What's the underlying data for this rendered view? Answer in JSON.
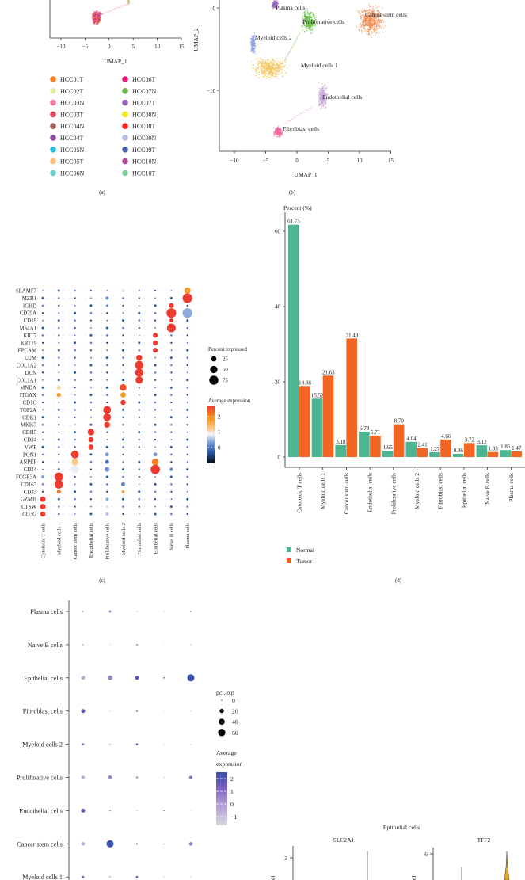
{
  "panel_a": {
    "caption": "(a)",
    "xlabel": "UMAP_1",
    "xticks": [
      "−10",
      "−5",
      "0",
      "5",
      "10",
      "15"
    ],
    "legend": [
      {
        "label": "HCC01T",
        "color": "#f58220"
      },
      {
        "label": "HCC02T",
        "color": "#e6eba2"
      },
      {
        "label": "HCC03N",
        "color": "#f07aa8"
      },
      {
        "label": "HCC03T",
        "color": "#d9485a"
      },
      {
        "label": "HCC04N",
        "color": "#9a5f5c"
      },
      {
        "label": "HCC04T",
        "color": "#8e4ba0"
      },
      {
        "label": "HCC05N",
        "color": "#27c0e0"
      },
      {
        "label": "HCC05T",
        "color": "#fdc27a"
      },
      {
        "label": "HCC06N",
        "color": "#6ccfd6"
      },
      {
        "label": "HCC06T",
        "color": "#e8197a"
      },
      {
        "label": "HCC07N",
        "color": "#6ab64a"
      },
      {
        "label": "HCC07T",
        "color": "#9462b0"
      },
      {
        "label": "HCC08N",
        "color": "#f2e51a"
      },
      {
        "label": "HCC08T",
        "color": "#ee2024"
      },
      {
        "label": "HCC09N",
        "color": "#b3bde3"
      },
      {
        "label": "HCC09T",
        "color": "#4a5fae"
      },
      {
        "label": "HCC10N",
        "color": "#b0499b"
      },
      {
        "label": "HCC10T",
        "color": "#7fcc96"
      }
    ]
  },
  "panel_b": {
    "caption": "(b)",
    "xlabel": "UMAP_1",
    "ylabel": "UMAP_2",
    "xticks": [
      "−10",
      "−5",
      "0",
      "5",
      "10",
      "15"
    ],
    "yticks": [
      "0",
      "−10"
    ],
    "clusters": [
      {
        "label": "Plasma cells",
        "color": "#9a6bb8",
        "u": -3.5,
        "v": 0.4,
        "su": 0.6,
        "sv": 0.6
      },
      {
        "label": "Proliferative cells",
        "color": "#6cc04a",
        "u": 1.9,
        "v": -1.6,
        "su": 1.4,
        "sv": 1.6
      },
      {
        "label": "Cancer stem cells",
        "color": "#f58a4e",
        "u": 11.8,
        "v": -1.5,
        "su": 2.6,
        "sv": 2.2
      },
      {
        "label": "Myeloid cells 2",
        "color": "#8fa8df",
        "u": -7,
        "v": -4.3,
        "su": 0.5,
        "sv": 1.5
      },
      {
        "label": "Myeloid cells 1",
        "color": "#f3c45a",
        "u": -4.3,
        "v": -7.3,
        "su": 3.2,
        "sv": 1.6
      },
      {
        "label": "Endothelial cells",
        "color": "#c8a7d8",
        "u": 4.1,
        "v": -10.8,
        "su": 0.9,
        "sv": 1.8
      },
      {
        "label": "Fibroblast cells",
        "color": "#f06aa0",
        "u": -3,
        "v": -15,
        "su": 0.9,
        "sv": 0.8
      }
    ]
  },
  "panel_c": {
    "caption": "(c)",
    "size_legend_title": "Percent expressed",
    "size_legend": [
      {
        "label": "25",
        "pct": 25
      },
      {
        "label": "50",
        "pct": 50
      },
      {
        "label": "75",
        "pct": 75
      }
    ],
    "color_legend_title": "Average expression",
    "color_ticks": [
      {
        "label": "2",
        "value": 2
      },
      {
        "label": "1",
        "value": 1
      },
      {
        "label": "0",
        "value": 0
      }
    ],
    "genes": [
      "SLAMF7",
      "MZB1",
      "IGHD",
      "CD79A",
      "CD19",
      "MS4A1",
      "KRT7",
      "KRT19",
      "EPCAM",
      "LUM",
      "COL1A2",
      "DCN",
      "COL1A1",
      "MNDA",
      "ITGAX",
      "CD1C",
      "TOP2A",
      "CDK1",
      "MKI67",
      "CDH5",
      "CD34",
      "VWF",
      "PON1",
      "ANPEP",
      "CD24",
      "FCGR3A",
      "CD163",
      "CD33",
      "GZMH",
      "CTSW",
      "CD3G"
    ],
    "cells": [
      "Cytotoxic T cells",
      "Myeloid cells 1",
      "Cancer stem cells",
      "Endothelial cells",
      "Proliferative cells",
      "Myeloid cells 2",
      "Fibroblast cells",
      "Epithelial cells",
      "Naive B cells",
      "Plasma cells"
    ],
    "highlighted": [
      {
        "gene": "SLAMF7",
        "cell": 9,
        "pct": 38,
        "avg": 1.9
      },
      {
        "gene": "SLAMF7",
        "cell": 5,
        "pct": 12,
        "avg": 0.8
      },
      {
        "gene": "MZB1",
        "cell": 9,
        "pct": 85,
        "avg": 2.5
      },
      {
        "gene": "MZB1",
        "cell": 4,
        "pct": 10,
        "avg": 0.2
      },
      {
        "gene": "IGHD",
        "cell": 8,
        "pct": 22,
        "avg": 2.5
      },
      {
        "gene": "CD79A",
        "cell": 8,
        "pct": 85,
        "avg": 2.5
      },
      {
        "gene": "CD79A",
        "cell": 9,
        "pct": 85,
        "avg": 0.4
      },
      {
        "gene": "CD19",
        "cell": 8,
        "pct": 15,
        "avg": 2.5
      },
      {
        "gene": "MS4A1",
        "cell": 8,
        "pct": 70,
        "avg": 2.5
      },
      {
        "gene": "KRT7",
        "cell": 7,
        "pct": 22,
        "avg": 2.5
      },
      {
        "gene": "KRT19",
        "cell": 7,
        "pct": 22,
        "avg": 2.5
      },
      {
        "gene": "EPCAM",
        "cell": 7,
        "pct": 22,
        "avg": 2.5
      },
      {
        "gene": "LUM",
        "cell": 6,
        "pct": 32,
        "avg": 2.5
      },
      {
        "gene": "COL1A2",
        "cell": 6,
        "pct": 65,
        "avg": 2.5
      },
      {
        "gene": "DCN",
        "cell": 6,
        "pct": 62,
        "avg": 2.5
      },
      {
        "gene": "COL1A1",
        "cell": 6,
        "pct": 50,
        "avg": 2.5
      },
      {
        "gene": "MNDA",
        "cell": 5,
        "pct": 40,
        "avg": 2.4
      },
      {
        "gene": "MNDA",
        "cell": 1,
        "pct": 16,
        "avg": 1.2
      },
      {
        "gene": "ITGAX",
        "cell": 5,
        "pct": 25,
        "avg": 2.0
      },
      {
        "gene": "ITGAX",
        "cell": 1,
        "pct": 16,
        "avg": 1.9
      },
      {
        "gene": "CD1C",
        "cell": 5,
        "pct": 25,
        "avg": 2.5
      },
      {
        "gene": "TOP2A",
        "cell": 4,
        "pct": 55,
        "avg": 2.5
      },
      {
        "gene": "CDK1",
        "cell": 4,
        "pct": 55,
        "avg": 2.5
      },
      {
        "gene": "MKI67",
        "cell": 4,
        "pct": 32,
        "avg": 2.5
      },
      {
        "gene": "CDH5",
        "cell": 3,
        "pct": 40,
        "avg": 2.5
      },
      {
        "gene": "CD34",
        "cell": 3,
        "pct": 25,
        "avg": 2.5
      },
      {
        "gene": "VWF",
        "cell": 3,
        "pct": 25,
        "avg": 2.5
      },
      {
        "gene": "PON1",
        "cell": 2,
        "pct": 55,
        "avg": 2.5
      },
      {
        "gene": "PON1",
        "cell": 4,
        "pct": 14,
        "avg": 0.3
      },
      {
        "gene": "PON1",
        "cell": 7,
        "pct": 14,
        "avg": 0.3
      },
      {
        "gene": "ANPEP",
        "cell": 2,
        "pct": 42,
        "avg": 1.3
      },
      {
        "gene": "ANPEP",
        "cell": 7,
        "pct": 42,
        "avg": 2.1
      },
      {
        "gene": "ANPEP",
        "cell": 4,
        "pct": 14,
        "avg": -0.1
      },
      {
        "gene": "CD24",
        "cell": 2,
        "pct": 58,
        "avg": 0.85
      },
      {
        "gene": "CD24",
        "cell": 7,
        "pct": 80,
        "avg": 2.5
      },
      {
        "gene": "CD24",
        "cell": 4,
        "pct": 22,
        "avg": 0.2
      },
      {
        "gene": "CD24",
        "cell": 8,
        "pct": 10,
        "avg": 0.1
      },
      {
        "gene": "FCGR3A",
        "cell": 1,
        "pct": 70,
        "avg": 2.5
      },
      {
        "gene": "FCGR3A",
        "cell": 0,
        "pct": 10,
        "avg": 0.4
      },
      {
        "gene": "CD163",
        "cell": 1,
        "pct": 70,
        "avg": 2.5
      },
      {
        "gene": "CD163",
        "cell": 5,
        "pct": 14,
        "avg": 0.1
      },
      {
        "gene": "CD33",
        "cell": 1,
        "pct": 14,
        "avg": 2.2
      },
      {
        "gene": "CD33",
        "cell": 5,
        "pct": 10,
        "avg": 1.7
      },
      {
        "gene": "GZMH",
        "cell": 0,
        "pct": 28,
        "avg": 2.5
      },
      {
        "gene": "GZMH",
        "cell": 4,
        "pct": 8,
        "avg": 0.4
      },
      {
        "gene": "CTSW",
        "cell": 0,
        "pct": 28,
        "avg": 2.5
      },
      {
        "gene": "CTSW",
        "cell": 4,
        "pct": 8,
        "avg": 0.8
      },
      {
        "gene": "CD3G",
        "cell": 0,
        "pct": 25,
        "avg": 2.5
      },
      {
        "gene": "CD3G",
        "cell": 4,
        "pct": 10,
        "avg": 0.6
      }
    ]
  },
  "chart_data": {
    "type": "bar",
    "title": "",
    "ylabel": "Percent (%)",
    "xlabel": "",
    "ylim": [
      0,
      68
    ],
    "yticks": [
      0,
      20,
      40,
      60
    ],
    "legend_position": "bottom-left",
    "categories": [
      "Cytotoxic T cells",
      "Myeloid cells 1",
      "Cancer stem cells",
      "Endothelial cells",
      "Proliferative cells",
      "Myeloid cells 2",
      "Fibroblast cells",
      "Epithelial cells",
      "Naive B cells",
      "Plasma cells"
    ],
    "series": [
      {
        "name": "Normal",
        "color": "#4db592",
        "values": [
          61.75,
          15.52,
          3.18,
          6.74,
          1.65,
          4.04,
          1.27,
          0.86,
          3.12,
          1.85
        ],
        "labels": [
          "61.75",
          "15.52",
          "3.18",
          "6.74",
          "1.65",
          "4.04",
          "1.27",
          "0.86",
          "3.12",
          "1.85"
        ]
      },
      {
        "name": "Tumor",
        "color": "#f26522",
        "values": [
          18.88,
          21.63,
          31.49,
          5.71,
          8.7,
          2.41,
          4.66,
          3.72,
          1.33,
          1.47
        ],
        "labels": [
          "18.88",
          "21.63",
          "31.49",
          "5.71",
          "8.70",
          "2.41",
          "4.66",
          "3.72",
          "1.33",
          "1.47"
        ]
      }
    ],
    "caption": "(d)"
  },
  "panel_e": {
    "rows": [
      "Plasma cells",
      "Naive B cells",
      "Epithelial cells",
      "Fibroblast cells",
      "Myeloid cells 2",
      "Proliferative cells",
      "Endothelial cells",
      "Cancer stem cells",
      "Myeloid cells 1"
    ],
    "pct": [
      [
        3,
        6,
        1,
        1,
        3
      ],
      [
        2,
        1,
        3,
        0.5,
        1
      ],
      [
        17,
        25,
        17,
        3,
        56
      ],
      [
        17,
        1,
        3,
        0.5,
        1
      ],
      [
        6,
        2,
        5,
        0.5,
        1
      ],
      [
        13,
        17,
        4,
        1,
        13
      ],
      [
        17,
        3,
        1,
        1.5,
        0.5
      ],
      [
        13,
        56,
        3,
        1,
        13
      ],
      [
        6,
        2,
        5,
        1,
        1
      ]
    ],
    "avg": [
      [
        -0.8,
        0.2,
        -0.5,
        -1,
        -0.2
      ],
      [
        -0.2,
        -0.8,
        0.3,
        -1,
        -0.5
      ],
      [
        -0.6,
        0.3,
        1.8,
        0.5,
        2.6
      ],
      [
        1.9,
        -0.5,
        0.3,
        -1,
        -0.3
      ],
      [
        0.3,
        -0.3,
        1,
        -0.6,
        -0.5
      ],
      [
        -0.5,
        0.3,
        0.2,
        -0.5,
        0.6
      ],
      [
        1.9,
        0.1,
        -0.4,
        1,
        -0.8
      ],
      [
        -0.5,
        2.6,
        0.2,
        0.5,
        0.6
      ],
      [
        0.9,
        0.2,
        1.4,
        -0.3,
        -0.3
      ]
    ],
    "size_legend_title": "pct.exp",
    "size_legend": [
      {
        "label": "0",
        "pct": 0.5
      },
      {
        "label": "20",
        "pct": 20
      },
      {
        "label": "40",
        "pct": 40
      },
      {
        "label": "60",
        "pct": 60
      }
    ],
    "color_legend_title_1": "Average",
    "color_legend_title_2": "expression",
    "color_ticks": [
      {
        "label": "2",
        "value": 2
      },
      {
        "label": "1",
        "value": 1
      },
      {
        "label": "0",
        "value": 0
      },
      {
        "label": "−1",
        "value": -1
      }
    ]
  },
  "panel_f": {
    "title": "Epithelial cells",
    "genes": [
      {
        "name": "SLC2A1",
        "tick": "3"
      },
      {
        "name": "TFF2",
        "tick": "6"
      }
    ],
    "ylabel_fragment": "el"
  }
}
